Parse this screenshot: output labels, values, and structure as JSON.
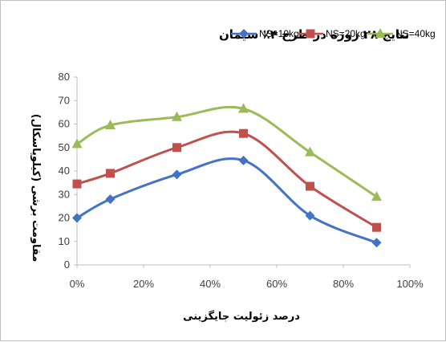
{
  "chart_data": {
    "type": "line",
    "title": "نتایج ۲۸ روزه در طرح ۴٪ سیمان",
    "xlabel": "درصد زئولیت جایگزینی",
    "ylabel": "مقاومت برشی (کیلوپاسکال)",
    "x": [
      0,
      10,
      30,
      50,
      70,
      90
    ],
    "xlim": [
      0,
      100
    ],
    "x_ticks": [
      "0%",
      "20%",
      "40%",
      "60%",
      "80%",
      "100%"
    ],
    "ylim": [
      0,
      80
    ],
    "y_ticks": [
      "0",
      "10",
      "20",
      "30",
      "40",
      "50",
      "60",
      "70",
      "80"
    ],
    "grid": false,
    "legend_position": "top",
    "series": [
      {
        "name": "NS=10kg",
        "values": [
          20,
          28,
          38.5,
          44.5,
          21,
          9.5
        ],
        "color": "#4472c4",
        "marker": "diamond"
      },
      {
        "name": "NS=20kg",
        "values": [
          34.5,
          39,
          50,
          56,
          33.5,
          16
        ],
        "color": "#c0504d",
        "marker": "square"
      },
      {
        "name": "NS=40kg",
        "values": [
          51.5,
          59.5,
          63,
          66.5,
          48,
          29
        ],
        "color": "#9bbb59",
        "marker": "triangle"
      }
    ]
  }
}
